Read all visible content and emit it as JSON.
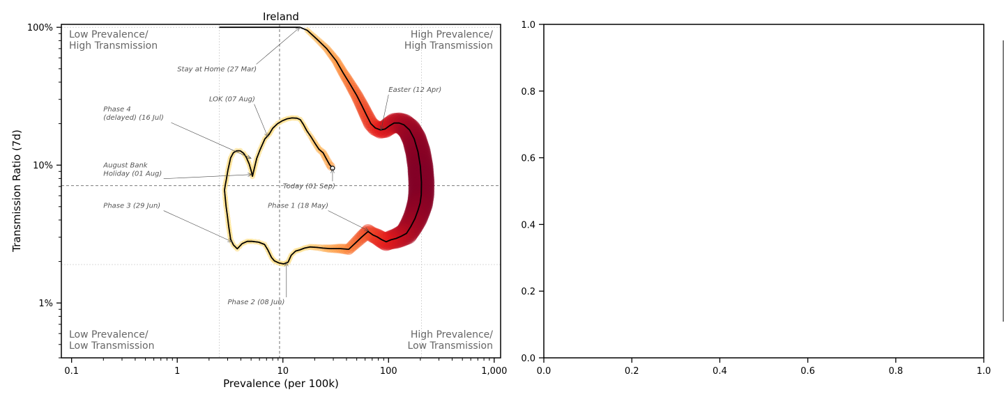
{
  "chart_data": [
    {
      "type": "scatter",
      "title": "Ireland",
      "xlabel": "Prevalence (per 100k)",
      "ylabel": "Transmission Ratio (7d)",
      "xscale": "log",
      "yscale": "log",
      "xlim": [
        0.08,
        1150
      ],
      "ylim": [
        0.004,
        1.05
      ],
      "x_ticks": [
        {
          "value": 0.1,
          "label": "0.1"
        },
        {
          "value": 1,
          "label": "1"
        },
        {
          "value": 10,
          "label": "10"
        },
        {
          "value": 100,
          "label": "100"
        },
        {
          "value": 1000,
          "label": "1,000"
        }
      ],
      "y_ticks": [
        {
          "value": 0.01,
          "label": "1%"
        },
        {
          "value": 0.1,
          "label": "10%"
        },
        {
          "value": 1,
          "label": "100%"
        }
      ],
      "grid": true,
      "reference_lines": {
        "x_median": 9.3,
        "y_median": 0.071,
        "x_extra": [
          2.5,
          205
        ],
        "y_extra": [
          0.019
        ]
      },
      "quadrant_labels": {
        "top_left": "Low Prevalence/\nHigh Transmission",
        "top_right": "High Prevalence/\nHigh Transmission",
        "bottom_left": "Low Prevalence/\nLow Transmission",
        "bottom_right": "High Prevalence/\nLow Transmission"
      },
      "trajectory": [
        {
          "x": 2.5,
          "y": 1.0
        },
        {
          "x": 5,
          "y": 1.0
        },
        {
          "x": 10,
          "y": 1.0
        },
        {
          "x": 14.5,
          "y": 1.0
        },
        {
          "x": 17,
          "y": 0.95
        },
        {
          "x": 21,
          "y": 0.82
        },
        {
          "x": 26,
          "y": 0.7
        },
        {
          "x": 32,
          "y": 0.57
        },
        {
          "x": 37,
          "y": 0.47
        },
        {
          "x": 43,
          "y": 0.39
        },
        {
          "x": 50,
          "y": 0.32
        },
        {
          "x": 56,
          "y": 0.27
        },
        {
          "x": 62,
          "y": 0.23
        },
        {
          "x": 68,
          "y": 0.2
        },
        {
          "x": 75,
          "y": 0.186
        },
        {
          "x": 84,
          "y": 0.18
        },
        {
          "x": 93,
          "y": 0.183
        },
        {
          "x": 102,
          "y": 0.193
        },
        {
          "x": 113,
          "y": 0.202
        },
        {
          "x": 126,
          "y": 0.202
        },
        {
          "x": 140,
          "y": 0.196
        },
        {
          "x": 158,
          "y": 0.18
        },
        {
          "x": 175,
          "y": 0.155
        },
        {
          "x": 190,
          "y": 0.125
        },
        {
          "x": 200,
          "y": 0.098
        },
        {
          "x": 205,
          "y": 0.075
        },
        {
          "x": 204,
          "y": 0.061
        },
        {
          "x": 199,
          "y": 0.053
        },
        {
          "x": 190,
          "y": 0.047
        },
        {
          "x": 178,
          "y": 0.041
        },
        {
          "x": 163,
          "y": 0.036
        },
        {
          "x": 148,
          "y": 0.032
        },
        {
          "x": 132,
          "y": 0.0305
        },
        {
          "x": 118,
          "y": 0.0294
        },
        {
          "x": 105,
          "y": 0.0287
        },
        {
          "x": 95,
          "y": 0.0278
        },
        {
          "x": 86,
          "y": 0.0288
        },
        {
          "x": 78,
          "y": 0.0302
        },
        {
          "x": 71,
          "y": 0.0312
        },
        {
          "x": 64,
          "y": 0.033
        },
        {
          "x": 56,
          "y": 0.0302
        },
        {
          "x": 48,
          "y": 0.027
        },
        {
          "x": 42,
          "y": 0.0245
        },
        {
          "x": 35,
          "y": 0.0248
        },
        {
          "x": 28,
          "y": 0.0248
        },
        {
          "x": 24,
          "y": 0.025
        },
        {
          "x": 21,
          "y": 0.0253
        },
        {
          "x": 18,
          "y": 0.0255
        },
        {
          "x": 16,
          "y": 0.025
        },
        {
          "x": 14.5,
          "y": 0.0243
        },
        {
          "x": 13.2,
          "y": 0.0238
        },
        {
          "x": 12.0,
          "y": 0.0222
        },
        {
          "x": 11.2,
          "y": 0.0198
        },
        {
          "x": 10.2,
          "y": 0.0192
        },
        {
          "x": 9.2,
          "y": 0.0195
        },
        {
          "x": 8.3,
          "y": 0.0202
        },
        {
          "x": 7.8,
          "y": 0.0214
        },
        {
          "x": 7.2,
          "y": 0.0243
        },
        {
          "x": 6.7,
          "y": 0.0266
        },
        {
          "x": 5.9,
          "y": 0.0276
        },
        {
          "x": 5.1,
          "y": 0.028
        },
        {
          "x": 4.6,
          "y": 0.028
        },
        {
          "x": 4.1,
          "y": 0.0269
        },
        {
          "x": 3.7,
          "y": 0.0247
        },
        {
          "x": 3.4,
          "y": 0.0264
        },
        {
          "x": 3.2,
          "y": 0.029
        },
        {
          "x": 3.07,
          "y": 0.036
        },
        {
          "x": 2.98,
          "y": 0.043
        },
        {
          "x": 2.9,
          "y": 0.05
        },
        {
          "x": 2.84,
          "y": 0.059
        },
        {
          "x": 2.8,
          "y": 0.066
        },
        {
          "x": 2.86,
          "y": 0.073
        },
        {
          "x": 2.92,
          "y": 0.079
        },
        {
          "x": 3.02,
          "y": 0.092
        },
        {
          "x": 3.2,
          "y": 0.113
        },
        {
          "x": 3.4,
          "y": 0.123
        },
        {
          "x": 3.65,
          "y": 0.127
        },
        {
          "x": 3.95,
          "y": 0.127
        },
        {
          "x": 4.25,
          "y": 0.122
        },
        {
          "x": 4.5,
          "y": 0.114
        },
        {
          "x": 4.8,
          "y": 0.102
        },
        {
          "x": 5.05,
          "y": 0.089
        },
        {
          "x": 5.15,
          "y": 0.083
        },
        {
          "x": 5.35,
          "y": 0.094
        },
        {
          "x": 5.65,
          "y": 0.112
        },
        {
          "x": 6.1,
          "y": 0.13
        },
        {
          "x": 6.75,
          "y": 0.155
        },
        {
          "x": 7.4,
          "y": 0.167
        },
        {
          "x": 8.0,
          "y": 0.185
        },
        {
          "x": 8.9,
          "y": 0.2
        },
        {
          "x": 9.9,
          "y": 0.21
        },
        {
          "x": 11.0,
          "y": 0.217
        },
        {
          "x": 12.2,
          "y": 0.22
        },
        {
          "x": 13.6,
          "y": 0.219
        },
        {
          "x": 14.6,
          "y": 0.214
        },
        {
          "x": 15.6,
          "y": 0.198
        },
        {
          "x": 16.8,
          "y": 0.178
        },
        {
          "x": 18.3,
          "y": 0.162
        },
        {
          "x": 20.0,
          "y": 0.145
        },
        {
          "x": 22.0,
          "y": 0.13
        },
        {
          "x": 24.0,
          "y": 0.123
        },
        {
          "x": 25.8,
          "y": 0.111
        },
        {
          "x": 27.6,
          "y": 0.101
        },
        {
          "x": 29.5,
          "y": 0.095
        }
      ],
      "annotations": [
        {
          "text": "Stay at Home (27 Mar)",
          "x": 14.5,
          "y": 1.0,
          "tx": 1.0,
          "ty": 0.48
        },
        {
          "text": "Easter (12 Apr)",
          "x": 85,
          "y": 0.18,
          "tx": 100,
          "ty": 0.34
        },
        {
          "text": "LOK (07 Aug)",
          "x": 7.2,
          "y": 0.16,
          "tx": 2.0,
          "ty": 0.29
        },
        {
          "text": "Phase 4\n(delayed) (16 Jul)",
          "x": 5.0,
          "y": 0.112,
          "tx": 0.2,
          "ty": 0.245
        },
        {
          "text": "August Bank\nHoliday (01 Aug)",
          "x": 5.1,
          "y": 0.0855,
          "tx": 0.2,
          "ty": 0.096
        },
        {
          "text": "Today (01 Sep)",
          "x": 29.5,
          "y": 0.094,
          "tx": 10,
          "ty": 0.068
        },
        {
          "text": "Phase 3 (29 Jun)",
          "x": 3.3,
          "y": 0.0278,
          "tx": 0.2,
          "ty": 0.049
        },
        {
          "text": "Phase 1 (18 May)",
          "x": 65,
          "y": 0.0333,
          "tx": 7.2,
          "ty": 0.049
        },
        {
          "text": "Phase 2 (08 Jun)",
          "x": 10.8,
          "y": 0.0198,
          "tx": 3.0,
          "ty": 0.0098
        }
      ]
    },
    {
      "type": "scatter",
      "title": "",
      "xlim": [
        0,
        1
      ],
      "ylim": [
        0,
        1
      ],
      "x_ticks": [
        "0.0",
        "0.2",
        "0.4",
        "0.6",
        "0.8",
        "1.0"
      ],
      "y_ticks": [
        "0.0",
        "0.2",
        "0.4",
        "0.6",
        "0.8",
        "1.0"
      ],
      "series": []
    }
  ]
}
